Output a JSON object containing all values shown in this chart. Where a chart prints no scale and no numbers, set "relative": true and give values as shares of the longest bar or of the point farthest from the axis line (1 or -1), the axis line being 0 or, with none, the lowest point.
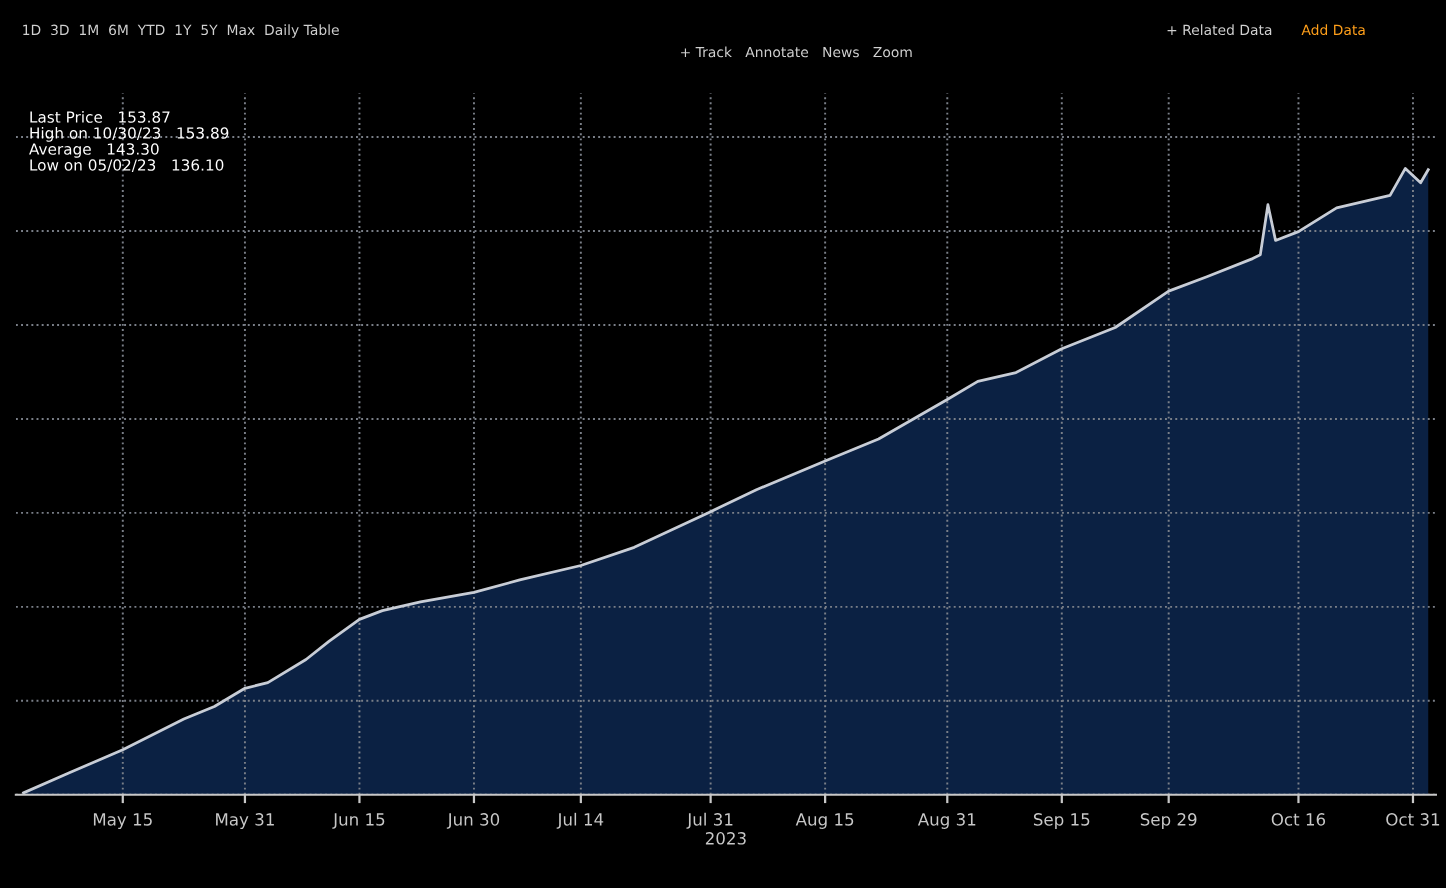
{
  "chart_data": {
    "type": "area",
    "relative": true,
    "xlabel": "2023",
    "x": [
      "2023-05-02",
      "2023-05-08",
      "2023-05-15",
      "2023-05-23",
      "2023-05-27",
      "2023-05-31",
      "2023-06-03",
      "2023-06-08",
      "2023-06-11",
      "2023-06-15",
      "2023-06-18",
      "2023-06-23",
      "2023-06-30",
      "2023-07-06",
      "2023-07-14",
      "2023-07-21",
      "2023-07-31",
      "2023-08-06",
      "2023-08-15",
      "2023-08-22",
      "2023-08-31",
      "2023-09-04",
      "2023-09-09",
      "2023-09-15",
      "2023-09-22",
      "2023-09-29",
      "2023-10-04",
      "2023-10-10",
      "2023-10-11",
      "2023-10-12",
      "2023-10-13",
      "2023-10-16",
      "2023-10-21",
      "2023-10-28",
      "2023-10-30",
      "2023-11-01",
      "2023-11-02"
    ],
    "series": [
      {
        "color": "#0b2143",
        "values": [
          0.003,
          0.035,
          0.072,
          0.121,
          0.141,
          0.17,
          0.179,
          0.216,
          0.245,
          0.28,
          0.294,
          0.308,
          0.323,
          0.343,
          0.366,
          0.395,
          0.452,
          0.487,
          0.533,
          0.568,
          0.631,
          0.66,
          0.674,
          0.712,
          0.746,
          0.804,
          0.827,
          0.856,
          0.862,
          0.942,
          0.885,
          0.899,
          0.937,
          0.957,
          1.0,
          0.977,
          0.998
        ]
      }
    ],
    "xlim": [
      "2023-05-01",
      "2023-11-03"
    ],
    "xticks": [
      {
        "value": "2023-05-15",
        "label": "May 15"
      },
      {
        "value": "2023-05-31",
        "label": "May 31"
      },
      {
        "value": "2023-06-15",
        "label": "Jun 15"
      },
      {
        "value": "2023-06-30",
        "label": "Jun 30"
      },
      {
        "value": "2023-07-14",
        "label": "Jul 14"
      },
      {
        "value": "2023-07-31",
        "label": "Jul 31"
      },
      {
        "value": "2023-08-15",
        "label": "Aug 15"
      },
      {
        "value": "2023-08-31",
        "label": "Aug 31"
      },
      {
        "value": "2023-09-15",
        "label": "Sep 15"
      },
      {
        "value": "2023-09-29",
        "label": "Sep 29"
      },
      {
        "value": "2023-10-16",
        "label": "Oct 16"
      },
      {
        "value": "2023-10-31",
        "label": "Oct 31"
      }
    ],
    "grid": true,
    "annotations": [
      "Last Price   153.87",
      "High on 10/30/23   153.89",
      "Average   143.30",
      "Low on 05/02/23   136.10",
      "1D  3D  1M  6M  YTD  1Y  5Y  Max  Daily",
      "Table",
      "+ Track   Annotate   News   Zoom",
      "+ Related Data",
      "Add Data"
    ]
  }
}
